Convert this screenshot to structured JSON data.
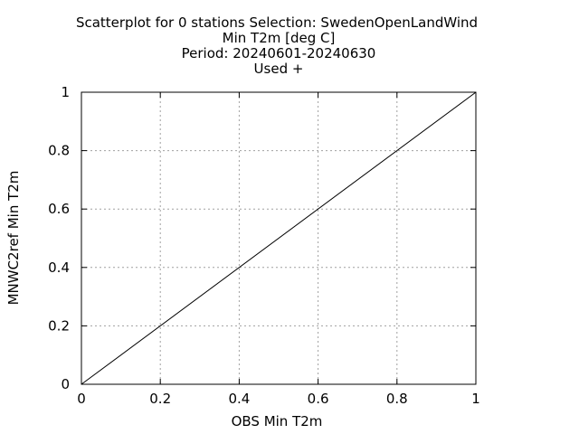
{
  "chart_data": {
    "type": "scatter",
    "title_lines": [
      "Scatterplot for    0 stations Selection: SwedenOpenLandWind",
      "Min T2m [deg C]",
      "Period: 20240601-20240630",
      "Used  +"
    ],
    "xlabel": "OBS Min T2m",
    "ylabel": "MNWC2ref Min T2m",
    "xlim": [
      0,
      1
    ],
    "ylim": [
      0,
      1
    ],
    "xticks": [
      "0",
      "0.2",
      "0.4",
      "0.6",
      "0.8",
      "1"
    ],
    "yticks": [
      "0",
      "0.2",
      "0.4",
      "0.6",
      "0.8",
      "1"
    ],
    "grid": true,
    "points": [],
    "reference_line": {
      "x": [
        0,
        1
      ],
      "y": [
        0,
        1
      ]
    }
  }
}
